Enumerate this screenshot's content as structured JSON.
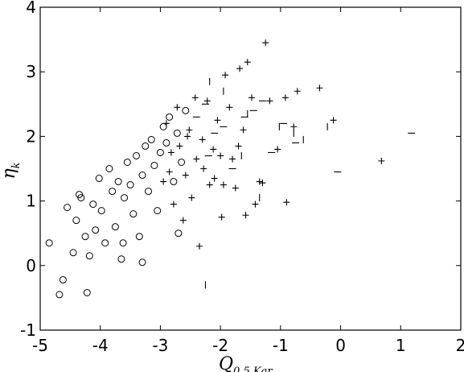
{
  "chart_data": {
    "type": "scatter",
    "title": "",
    "xlabel": "Q",
    "xlabel_subscript": "0.5 Kar",
    "ylabel": "η",
    "ylabel_subscript": "k",
    "xlim": [
      -5,
      2
    ],
    "ylim": [
      -1,
      4
    ],
    "xticks": [
      "-5",
      "-4",
      "-3",
      "-2",
      "-1",
      "0",
      "1",
      "2"
    ],
    "yticks": [
      "-1",
      "0",
      "1",
      "2",
      "3",
      "4"
    ],
    "grid": false,
    "legend": "none",
    "colors": {
      "markers": "#000000",
      "background": "#ffffff"
    },
    "series": [
      {
        "marker": "circle",
        "x_range": [
          -4.9,
          -2.5
        ],
        "values": [
          [
            -4.85,
            0.35
          ],
          [
            -4.68,
            -0.45
          ],
          [
            -4.62,
            -0.22
          ],
          [
            -4.45,
            0.2
          ],
          [
            -4.4,
            0.7
          ],
          [
            -4.32,
            1.05
          ],
          [
            -4.25,
            0.45
          ],
          [
            -4.18,
            0.15
          ],
          [
            -4.12,
            0.95
          ],
          [
            -4.08,
            0.55
          ],
          [
            -4.02,
            1.35
          ],
          [
            -3.98,
            0.85
          ],
          [
            -3.92,
            0.35
          ],
          [
            -3.85,
            1.5
          ],
          [
            -3.8,
            1.15
          ],
          [
            -3.75,
            0.6
          ],
          [
            -3.7,
            1.3
          ],
          [
            -3.65,
            0.1
          ],
          [
            -3.6,
            1.05
          ],
          [
            -3.55,
            1.6
          ],
          [
            -3.5,
            1.25
          ],
          [
            -3.45,
            0.8
          ],
          [
            -3.4,
            1.7
          ],
          [
            -3.35,
            0.45
          ],
          [
            -3.3,
            1.4
          ],
          [
            -3.25,
            1.85
          ],
          [
            -3.2,
            1.15
          ],
          [
            -3.15,
            1.95
          ],
          [
            -3.1,
            1.55
          ],
          [
            -3.05,
            0.85
          ],
          [
            -3.0,
            1.75
          ],
          [
            -2.95,
            2.15
          ],
          [
            -2.9,
            1.9
          ],
          [
            -2.85,
            2.3
          ],
          [
            -2.78,
            1.3
          ],
          [
            -2.72,
            2.05
          ],
          [
            -2.65,
            1.6
          ],
          [
            -2.58,
            2.4
          ],
          [
            -4.22,
            -0.42
          ],
          [
            -3.3,
            0.05
          ],
          [
            -2.7,
            0.5
          ],
          [
            -4.55,
            0.9
          ],
          [
            -4.35,
            1.1
          ],
          [
            -3.62,
            0.35
          ]
        ]
      },
      {
        "marker": "plus",
        "x_range": [
          -3.4,
          0.7
        ],
        "values": [
          [
            -2.95,
            1.3
          ],
          [
            -2.9,
            2.2
          ],
          [
            -2.82,
            1.75
          ],
          [
            -2.78,
            0.95
          ],
          [
            -2.72,
            2.45
          ],
          [
            -2.68,
            1.85
          ],
          [
            -2.62,
            0.7
          ],
          [
            -2.58,
            1.4
          ],
          [
            -2.52,
            2.1
          ],
          [
            -2.48,
            1.05
          ],
          [
            -2.42,
            2.6
          ],
          [
            -2.35,
            0.3
          ],
          [
            -2.3,
            1.95
          ],
          [
            -2.22,
            2.55
          ],
          [
            -2.18,
            1.25
          ],
          [
            -2.12,
            1.8
          ],
          [
            -2.05,
            2.25
          ],
          [
            -1.98,
            0.75
          ],
          [
            -1.92,
            2.95
          ],
          [
            -1.85,
            2.45
          ],
          [
            -1.8,
            1.65
          ],
          [
            -1.75,
            1.2
          ],
          [
            -1.68,
            3.05
          ],
          [
            -1.62,
            2.1
          ],
          [
            -1.55,
            3.15
          ],
          [
            -1.48,
            2.6
          ],
          [
            -1.42,
            0.95
          ],
          [
            -1.35,
            1.3
          ],
          [
            -1.25,
            3.45
          ],
          [
            -1.18,
            2.55
          ],
          [
            -1.05,
            1.8
          ],
          [
            -0.92,
            2.6
          ],
          [
            -0.78,
            2.15
          ],
          [
            -0.72,
            2.7
          ],
          [
            -0.35,
            2.75
          ],
          [
            -0.12,
            2.25
          ],
          [
            0.68,
            1.62
          ],
          [
            -2.85,
            1.45
          ],
          [
            -2.55,
            2.0
          ],
          [
            -2.4,
            1.65
          ],
          [
            -2.28,
            1.5
          ],
          [
            -2.1,
            1.35
          ],
          [
            -2.0,
            1.7
          ],
          [
            -1.95,
            1.25
          ],
          [
            -1.7,
            1.85
          ],
          [
            -1.3,
            1.28
          ],
          [
            -0.9,
            0.98
          ],
          [
            -1.58,
            0.78
          ]
        ]
      },
      {
        "marker": "hline",
        "x_range": [
          -2.4,
          1.2
        ],
        "values": [
          [
            -2.4,
            2.3
          ],
          [
            -2.25,
            2.5
          ],
          [
            -2.1,
            2.05
          ],
          [
            -1.95,
            2.15
          ],
          [
            -1.8,
            1.5
          ],
          [
            -1.6,
            2.3
          ],
          [
            -1.45,
            2.4
          ],
          [
            -1.3,
            2.55
          ],
          [
            -1.15,
            1.75
          ],
          [
            -0.95,
            2.2
          ],
          [
            -0.75,
            1.9
          ],
          [
            -0.05,
            1.45
          ],
          [
            1.18,
            2.05
          ],
          [
            -2.2,
            1.7
          ]
        ]
      },
      {
        "marker": "vline",
        "x_range": [
          -2.3,
          -0.2
        ],
        "values": [
          [
            -2.25,
            -0.3
          ],
          [
            -2.18,
            2.85
          ],
          [
            -1.95,
            2.7
          ],
          [
            -1.55,
            2.35
          ],
          [
            -1.35,
            1.05
          ],
          [
            -1.02,
            2.15
          ],
          [
            -0.78,
            2.05
          ],
          [
            -0.62,
            1.95
          ],
          [
            -0.22,
            2.15
          ],
          [
            -1.65,
            1.7
          ]
        ]
      }
    ]
  }
}
